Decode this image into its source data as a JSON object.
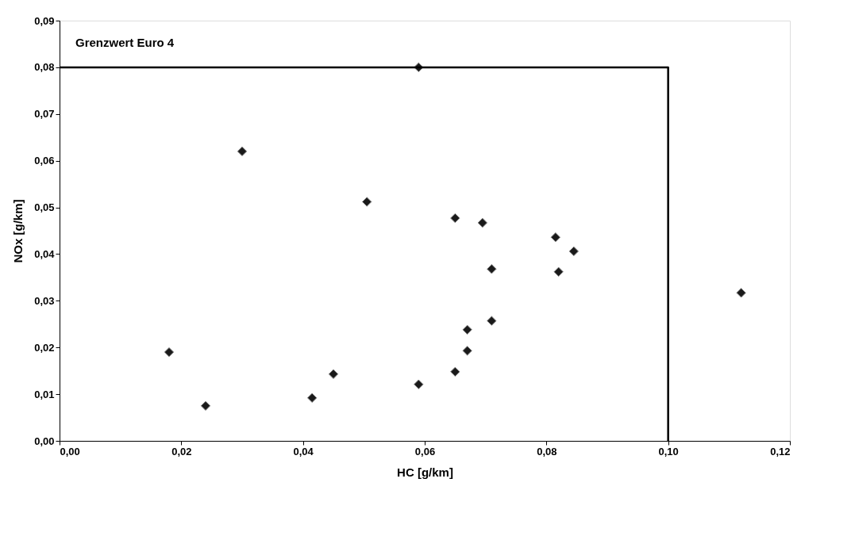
{
  "chart_data": {
    "type": "scatter",
    "xlabel": "HC [g/km]",
    "ylabel": "NOx [g/km]",
    "annotations": [
      "Grenzwert Euro 4"
    ],
    "series": [
      {
        "color": "#1a1a1a",
        "marker": "diamond",
        "x": [
          0.018,
          0.024,
          0.03,
          0.0415,
          0.045,
          0.0505,
          0.059,
          0.059,
          0.065,
          0.065,
          0.067,
          0.067,
          0.0695,
          0.071,
          0.071,
          0.0815,
          0.082,
          0.0845,
          0.112
        ],
        "values": [
          0.019,
          0.0075,
          0.062,
          0.0092,
          0.0143,
          0.0512,
          0.08,
          0.0121,
          0.0477,
          0.0148,
          0.0238,
          0.0193,
          0.0467,
          0.0368,
          0.0257,
          0.0436,
          0.0362,
          0.0406,
          0.0317
        ]
      },
      {
        "type": "line",
        "color": "#000000",
        "line_style": "solid",
        "marker": "none",
        "x": [
          0,
          0.1,
          0.1
        ],
        "values": [
          0.08,
          0.08,
          0
        ]
      }
    ],
    "xlim": [
      0,
      0.12
    ],
    "xticks": [
      {
        "value": 0,
        "label": "0,00"
      },
      {
        "value": 0.02,
        "label": "0,02"
      },
      {
        "value": 0.04,
        "label": "0,04"
      },
      {
        "value": 0.06,
        "label": "0,06"
      },
      {
        "value": 0.08,
        "label": "0,08"
      },
      {
        "value": 0.1,
        "label": "0,10"
      },
      {
        "value": 0.12,
        "label": "0,12"
      }
    ],
    "ylim": [
      0,
      0.09
    ],
    "yticks": [
      {
        "value": 0,
        "label": "0,00"
      },
      {
        "value": 0.01,
        "label": "0,01"
      },
      {
        "value": 0.02,
        "label": "0,02"
      },
      {
        "value": 0.03,
        "label": "0,03"
      },
      {
        "value": 0.04,
        "label": "0,04"
      },
      {
        "value": 0.05,
        "label": "0,05"
      },
      {
        "value": 0.06,
        "label": "0,06"
      },
      {
        "value": 0.07,
        "label": "0,07"
      },
      {
        "value": 0.08,
        "label": "0,08"
      },
      {
        "value": 0.09,
        "label": "0,09"
      }
    ],
    "grid": false
  }
}
